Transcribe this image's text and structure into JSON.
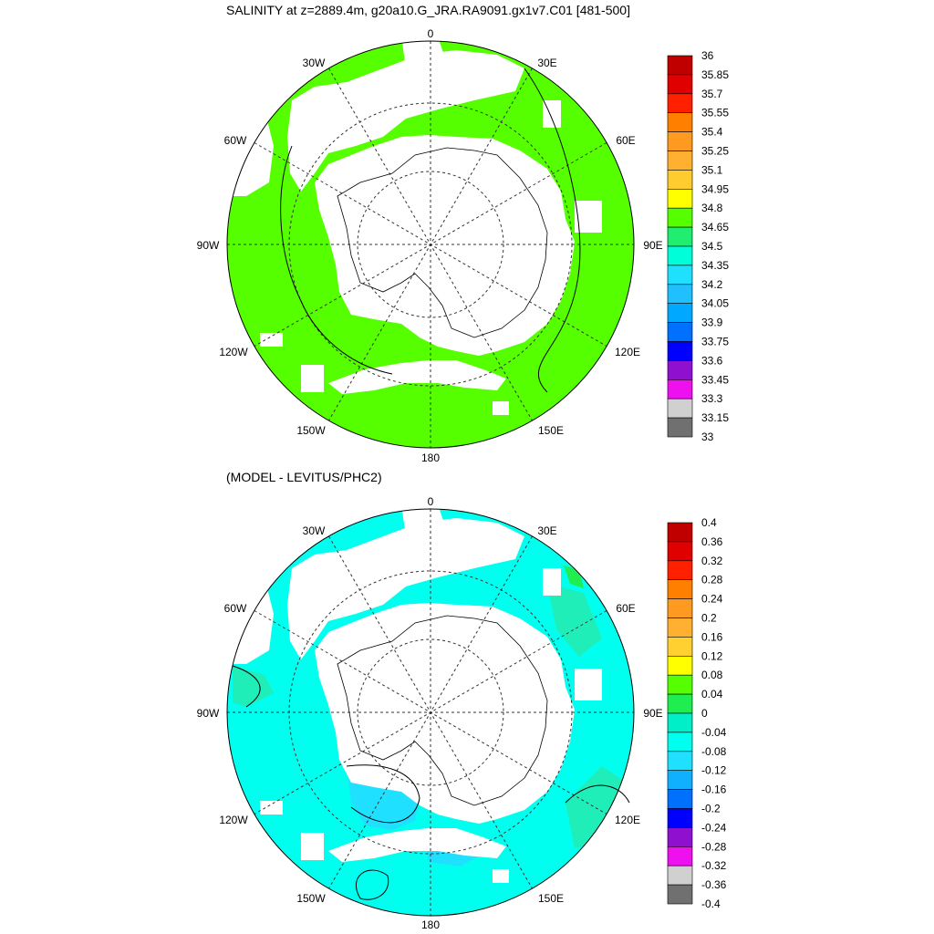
{
  "top_panel": {
    "title": "SALINITY at z=2889.4m, g20a10.G_JRA.RA9091.gx1v7.C01 [481-500]",
    "colorbar": {
      "labels": [
        "36",
        "35.85",
        "35.7",
        "35.55",
        "35.4",
        "35.25",
        "35.1",
        "34.95",
        "34.8",
        "34.65",
        "34.5",
        "34.35",
        "34.2",
        "34.05",
        "33.9",
        "33.75",
        "33.6",
        "33.45",
        "33.3",
        "33.15",
        "33"
      ],
      "colors": [
        "#c00000",
        "#e00000",
        "#ff2000",
        "#ff8000",
        "#ff9a20",
        "#ffb030",
        "#ffcc30",
        "#ffff00",
        "#55ff00",
        "#20ee70",
        "#00ffd8",
        "#20e0ff",
        "#20c0ff",
        "#00a8ff",
        "#0070ff",
        "#0000ff",
        "#9010d0",
        "#ee10ee",
        "#d0d0d0",
        "#707070"
      ]
    },
    "dominant_fill": "#55ff00"
  },
  "bottom_panel": {
    "title": "(MODEL - LEVITUS/PHC2)",
    "colorbar": {
      "labels": [
        "0.4",
        "0.36",
        "0.32",
        "0.28",
        "0.24",
        "0.2",
        "0.16",
        "0.12",
        "0.08",
        "0.04",
        "0",
        "-0.04",
        "-0.08",
        "-0.12",
        "-0.16",
        "-0.2",
        "-0.24",
        "-0.28",
        "-0.32",
        "-0.36",
        "-0.4"
      ],
      "colors": [
        "#c00000",
        "#e00000",
        "#ff2000",
        "#ff8000",
        "#ff9a20",
        "#ffb030",
        "#ffd030",
        "#ffff00",
        "#55ff00",
        "#20ee50",
        "#00eec8",
        "#00ffee",
        "#20e0ff",
        "#10b0ff",
        "#0070ff",
        "#0000ff",
        "#9010d0",
        "#ee10ee",
        "#d0d0d0",
        "#707070"
      ]
    },
    "dominant_fill": "#00ffee"
  },
  "map": {
    "projection": "south polar stereographic",
    "longitude_labels": [
      "0",
      "30E",
      "60E",
      "90E",
      "120E",
      "150E",
      "180",
      "150W",
      "120W",
      "90W",
      "60W",
      "30W"
    ]
  }
}
